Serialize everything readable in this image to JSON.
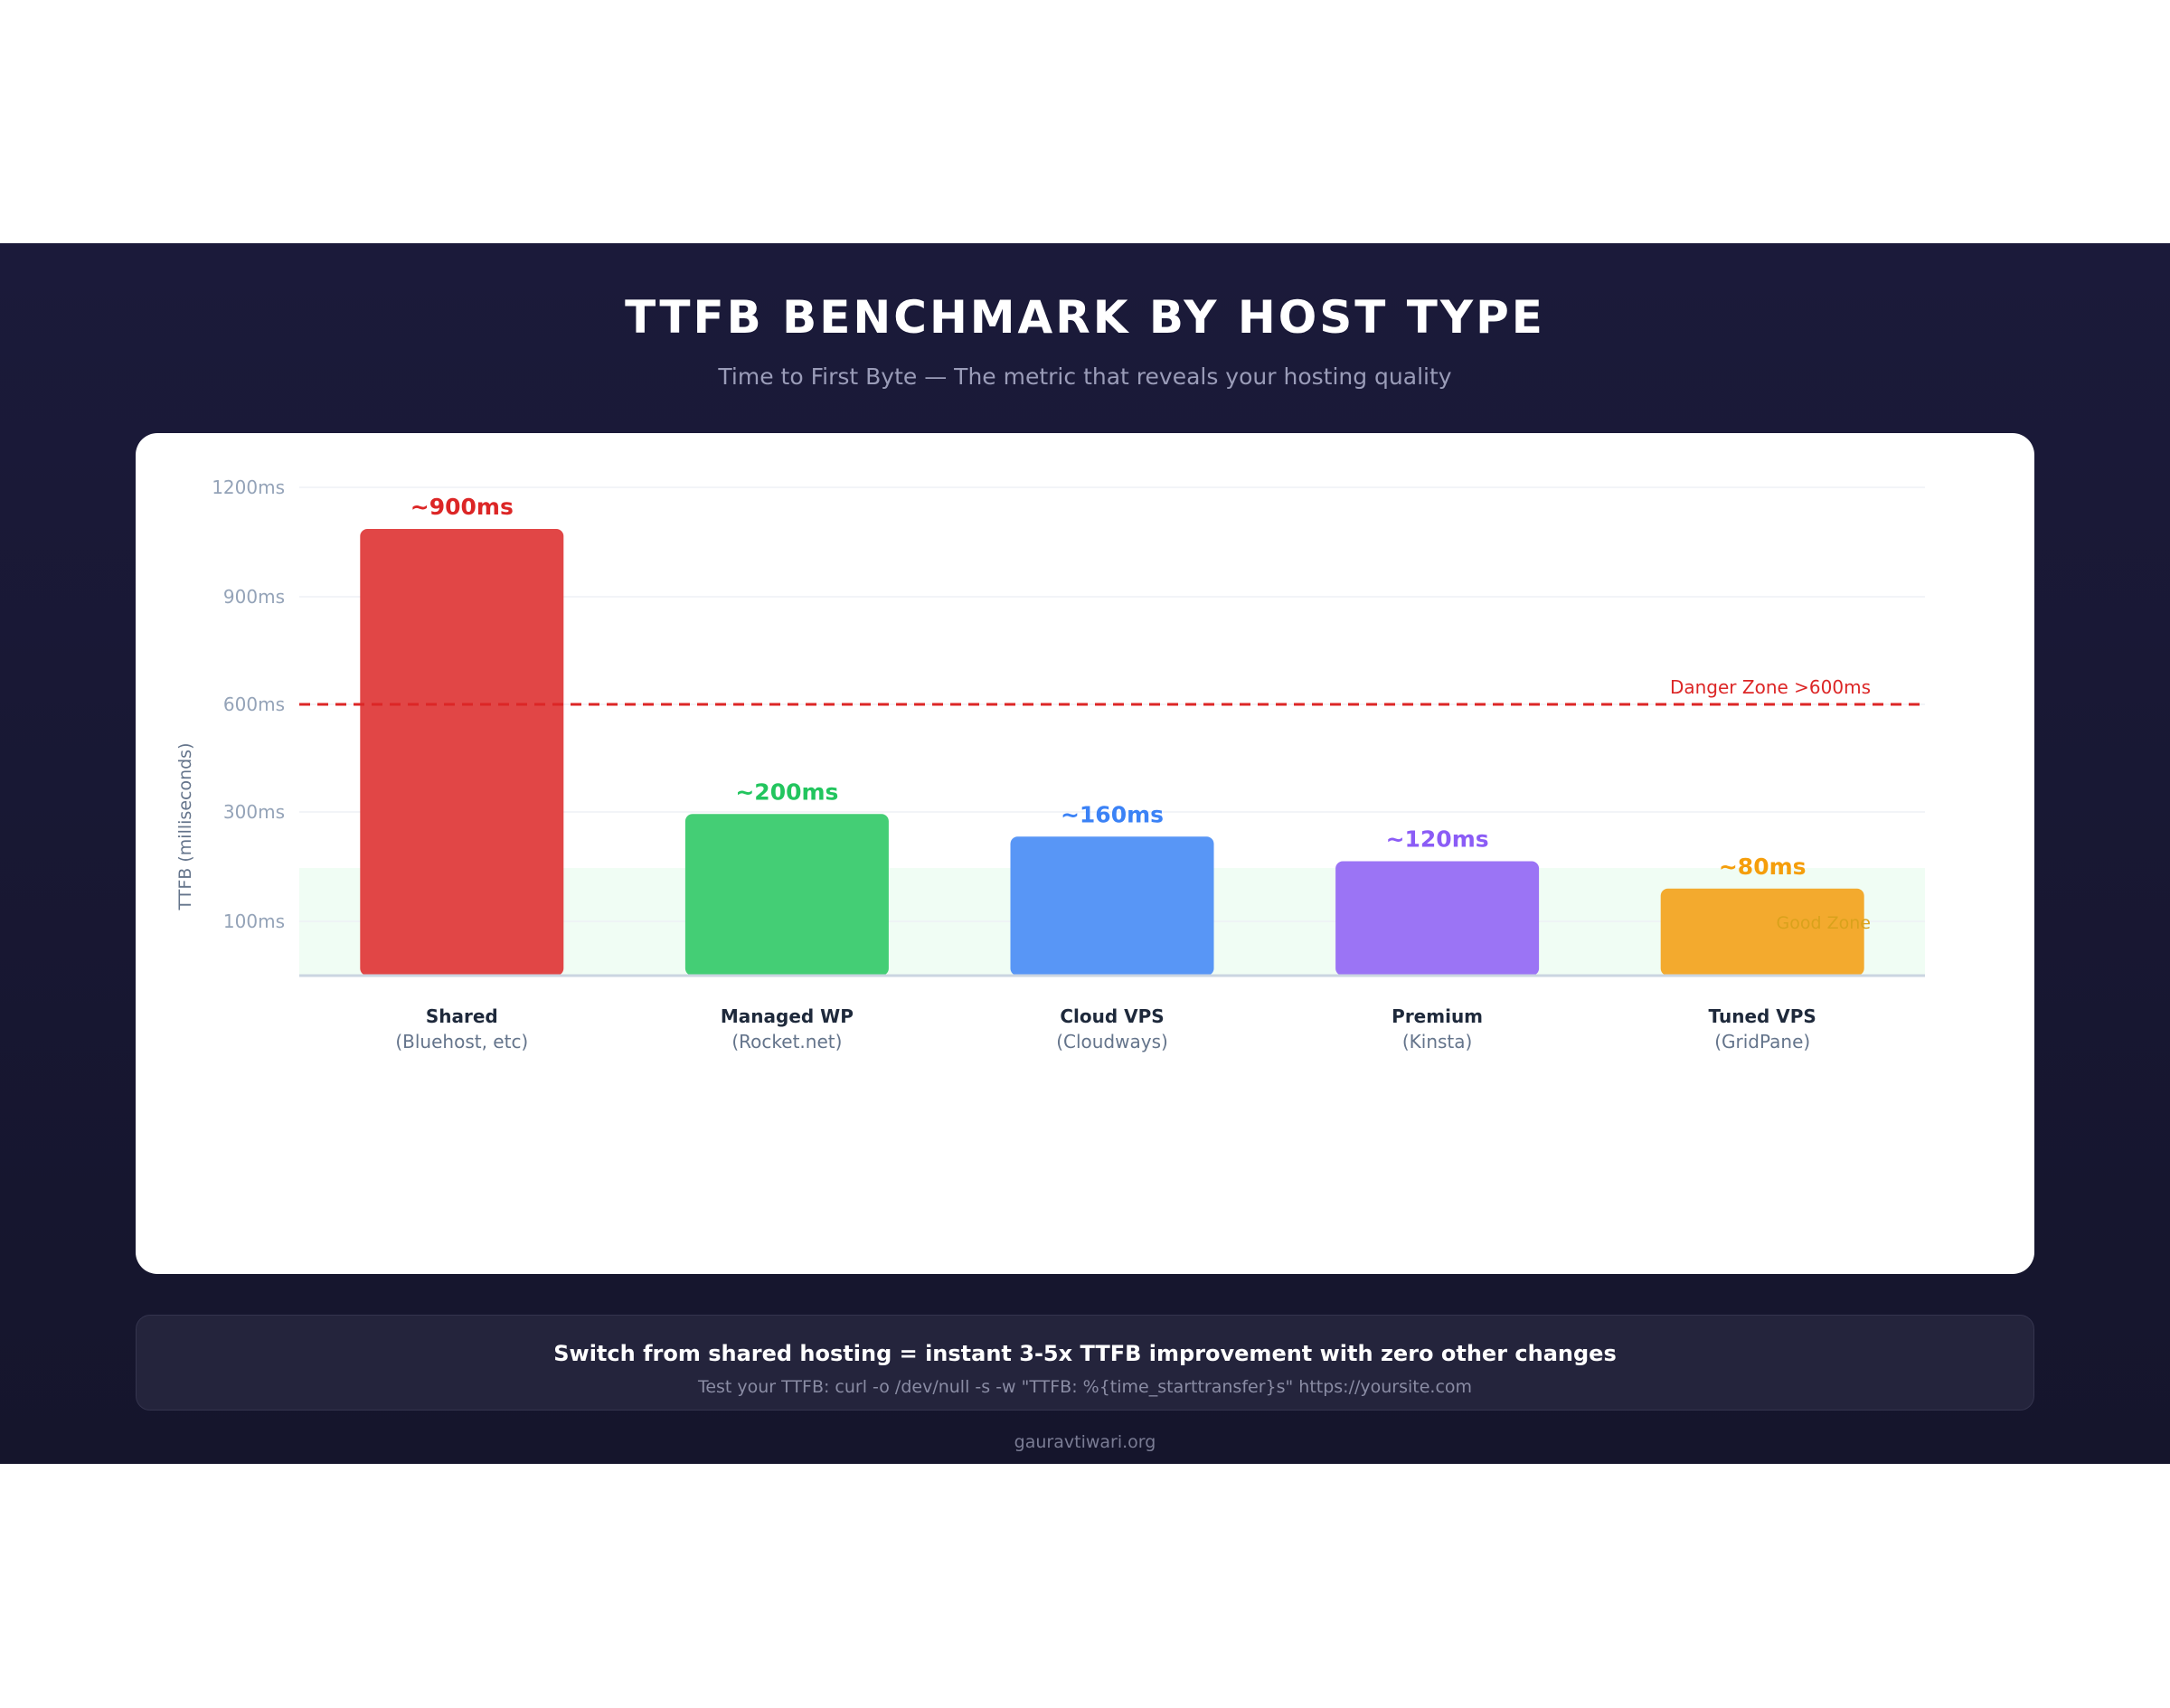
{
  "title": "TTFB BENCHMARK BY HOST TYPE",
  "subtitle": "Time to First Byte — The metric that reveals your hosting quality",
  "chart_data": {
    "type": "bar",
    "ylabel": "TTFB (milliseconds)",
    "y_tick_labels": [
      "1200ms",
      "900ms",
      "600ms",
      "300ms",
      "100ms"
    ],
    "categories": [
      {
        "name": "Shared",
        "sub": "(Bluehost, etc)"
      },
      {
        "name": "Managed WP",
        "sub": "(Rocket.net)"
      },
      {
        "name": "Cloud VPS",
        "sub": "(Cloudways)"
      },
      {
        "name": "Premium",
        "sub": "(Kinsta)"
      },
      {
        "name": "Tuned VPS",
        "sub": "(GridPane)"
      }
    ],
    "values": [
      900,
      200,
      160,
      120,
      80
    ],
    "value_labels": [
      "~900ms",
      "~200ms",
      "~160ms",
      "~120ms",
      "~80ms"
    ],
    "bar_colors": [
      "#e14646",
      "#44ce75",
      "#5896f6",
      "#9b74f5",
      "#f3aa2e"
    ],
    "label_colors": [
      "#dc2626",
      "#22c55e",
      "#3b82f6",
      "#8b5cf6",
      "#f59e0b"
    ],
    "threshold": {
      "value": 600,
      "label": "Danger Zone >600ms",
      "color": "#dc2626"
    },
    "good_zone": {
      "label": "Good Zone",
      "color": "#f0fdf4"
    },
    "grid": true
  },
  "note": {
    "main": "Switch from shared hosting = instant 3-5x TTFB improvement with zero other changes",
    "sub": "Test your TTFB: curl -o /dev/null -s -w \"TTFB: %{time_starttransfer}s\" https://yoursite.com"
  },
  "footer": "gauravtiwari.org"
}
